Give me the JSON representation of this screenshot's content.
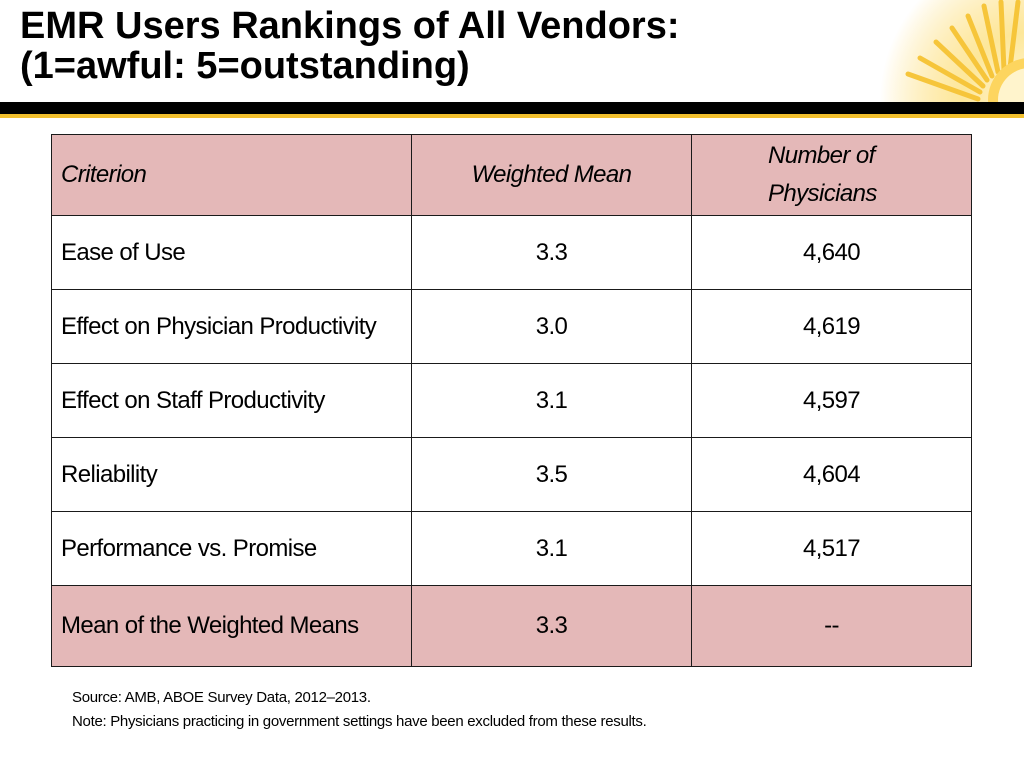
{
  "slide": {
    "title_line1": "EMR Users Rankings of All Vendors:",
    "title_line2": "(1=awful: 5=outstanding)"
  },
  "colors": {
    "header_fill": "#e4b8b8",
    "accent_gold": "#f2c02e",
    "rule_black": "#000000"
  },
  "table": {
    "headers": [
      "Criterion",
      "Weighted Mean",
      "Number of Physicians"
    ],
    "rows": [
      {
        "criterion": "Ease of Use",
        "weighted_mean": "3.3",
        "physicians": "4,640"
      },
      {
        "criterion": "Effect on Physician Productivity",
        "weighted_mean": "3.0",
        "physicians": "4,619"
      },
      {
        "criterion": "Effect on Staff Productivity",
        "weighted_mean": "3.1",
        "physicians": "4,597"
      },
      {
        "criterion": "Reliability",
        "weighted_mean": "3.5",
        "physicians": "4,604"
      },
      {
        "criterion": "Performance vs. Promise",
        "weighted_mean": "3.1",
        "physicians": "4,517"
      }
    ],
    "summary": {
      "criterion": "Mean of the Weighted Means",
      "weighted_mean": "3.3",
      "physicians": "--"
    }
  },
  "footnotes": {
    "source": "Source: AMB, ABOE Survey Data, 2012–2013.",
    "note": "Note: Physicians practicing in government settings have been excluded from these results."
  }
}
